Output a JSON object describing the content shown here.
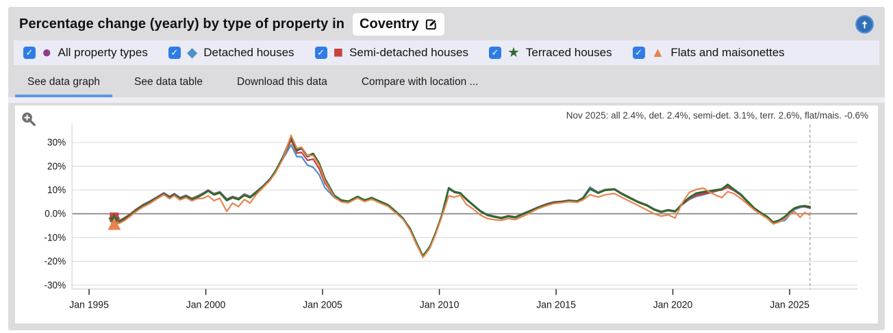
{
  "header": {
    "title": "Percentage change (yearly) by type of property in",
    "location": "Coventry"
  },
  "legend": {
    "items": [
      {
        "label": "All property types",
        "glyph": "●",
        "color": "#8e3d8e",
        "checked": true
      },
      {
        "label": "Detached houses",
        "glyph": "◆",
        "color": "#4f8fc7",
        "checked": true
      },
      {
        "label": "Semi-detached houses",
        "glyph": "■",
        "color": "#c9423f",
        "checked": true
      },
      {
        "label": "Terraced houses",
        "glyph": "★",
        "color": "#2c6b2f",
        "checked": true
      },
      {
        "label": "Flats and maisonettes",
        "glyph": "▲",
        "color": "#e8834e",
        "checked": true
      }
    ]
  },
  "tabs": [
    {
      "label": "See data graph",
      "active": true
    },
    {
      "label": "See data table",
      "active": false
    },
    {
      "label": "Download this data",
      "active": false
    },
    {
      "label": "Compare with location ...",
      "active": false
    }
  ],
  "colors": {
    "checkbox_blue": "#2f7ce6",
    "tab_underline_blue": "#5b97e0",
    "up_button_blue": "#2e6fb7",
    "widget_gray": "#dcdcde",
    "legend_bg": "#ebebf5"
  },
  "chart_data": {
    "type": "line",
    "note": "Nov 2025: all 2.4%, det. 2.4%, semi-det. 3.1%, terr. 2.6%, flat/mais. -0.6%",
    "ylabel": "Percentage change (yearly)",
    "x_range": [
      1994.27,
      2027.9
    ],
    "y_range": [
      -31.7,
      37.5
    ],
    "grid": true,
    "legend_position": "top",
    "current_month_line_x": 2025.87,
    "x_ticks": [
      {
        "v": 1995,
        "label": "Jan 1995"
      },
      {
        "v": 2000,
        "label": "Jan 2000"
      },
      {
        "v": 2005,
        "label": "Jan 2005"
      },
      {
        "v": 2010,
        "label": "Jan 2010"
      },
      {
        "v": 2015,
        "label": "Jan 2015"
      },
      {
        "v": 2020,
        "label": "Jan 2020"
      },
      {
        "v": 2025,
        "label": "Jan 2025"
      }
    ],
    "y_ticks": [
      {
        "v": 30,
        "label": "30%"
      },
      {
        "v": 20,
        "label": "20%"
      },
      {
        "v": 10,
        "label": "10%"
      },
      {
        "v": 0,
        "label": "0.0%"
      },
      {
        "v": -10,
        "label": "-10%"
      },
      {
        "v": -20,
        "label": "-20%"
      },
      {
        "v": -30,
        "label": "-30%"
      }
    ],
    "x": [
      1996.08,
      1996.3,
      1996.5,
      1996.75,
      1997.0,
      1997.3,
      1997.6,
      1997.9,
      1998.2,
      1998.45,
      1998.65,
      1998.9,
      1999.15,
      1999.4,
      1999.65,
      1999.9,
      2000.1,
      2000.35,
      2000.6,
      2000.9,
      2001.15,
      2001.4,
      2001.65,
      2001.9,
      2002.15,
      2002.45,
      2002.75,
      2003.0,
      2003.3,
      2003.65,
      2003.9,
      2004.1,
      2004.35,
      2004.6,
      2004.85,
      2005.1,
      2005.5,
      2005.8,
      2006.1,
      2006.5,
      2006.8,
      2007.1,
      2007.45,
      2007.8,
      2008.1,
      2008.45,
      2008.75,
      2009.0,
      2009.3,
      2009.6,
      2009.85,
      2010.1,
      2010.4,
      2010.65,
      2010.9,
      2011.15,
      2011.45,
      2011.75,
      2012.05,
      2012.35,
      2012.65,
      2012.95,
      2013.25,
      2013.6,
      2013.9,
      2014.2,
      2014.55,
      2014.9,
      2015.2,
      2015.55,
      2015.9,
      2016.15,
      2016.45,
      2016.8,
      2017.1,
      2017.5,
      2017.8,
      2018.1,
      2018.5,
      2018.9,
      2019.2,
      2019.5,
      2019.8,
      2020.1,
      2020.4,
      2020.7,
      2021.0,
      2021.3,
      2021.6,
      2021.9,
      2022.1,
      2022.35,
      2022.6,
      2022.9,
      2023.2,
      2023.5,
      2023.8,
      2024.05,
      2024.3,
      2024.55,
      2024.8,
      2025.0,
      2025.2,
      2025.45,
      2025.65,
      2025.87
    ],
    "series": [
      {
        "name": "All property types",
        "color": "#8e3d8e",
        "marker": "circle",
        "width": 2.4,
        "y": [
          -2.0,
          -3.2,
          -2.2,
          -0.5,
          1.5,
          3.5,
          5.0,
          6.8,
          8.5,
          7.0,
          8.2,
          6.5,
          7.5,
          6.2,
          7.2,
          8.5,
          9.8,
          8.2,
          9.0,
          5.8,
          7.0,
          6.2,
          8.0,
          7.0,
          9.0,
          11.5,
          14.5,
          18.0,
          23.5,
          32.0,
          26.5,
          27.5,
          24.0,
          25.0,
          21.0,
          14.5,
          7.5,
          5.5,
          5.0,
          7.0,
          5.5,
          6.5,
          5.0,
          3.5,
          1.0,
          -2.0,
          -6.5,
          -12.0,
          -18.0,
          -14.0,
          -8.0,
          -1.0,
          10.5,
          9.0,
          8.5,
          6.0,
          3.5,
          1.0,
          -0.5,
          -1.2,
          -1.8,
          -1.0,
          -1.5,
          0.0,
          1.2,
          2.5,
          3.8,
          4.8,
          5.0,
          5.5,
          5.2,
          6.5,
          10.5,
          8.8,
          10.0,
          10.3,
          8.5,
          7.0,
          5.0,
          3.5,
          1.8,
          0.8,
          1.5,
          1.0,
          4.0,
          6.5,
          8.2,
          8.7,
          9.2,
          9.8,
          10.0,
          11.3,
          10.0,
          8.0,
          5.0,
          2.0,
          0.0,
          -1.5,
          -3.8,
          -3.0,
          -1.5,
          0.5,
          2.0,
          2.8,
          3.0,
          2.4
        ]
      },
      {
        "name": "Detached houses",
        "color": "#4f8fc7",
        "marker": "diamond",
        "width": 2.2,
        "y": [
          -2.2,
          -3.0,
          -2.0,
          -0.3,
          1.8,
          3.8,
          5.3,
          7.0,
          8.8,
          7.3,
          8.5,
          6.8,
          7.8,
          6.5,
          7.5,
          8.8,
          10.0,
          8.5,
          9.3,
          6.2,
          7.3,
          6.5,
          8.3,
          7.3,
          9.3,
          11.8,
          14.8,
          18.3,
          23.0,
          29.0,
          24.0,
          24.0,
          20.5,
          19.5,
          16.5,
          11.0,
          6.8,
          5.2,
          4.8,
          6.8,
          5.2,
          6.8,
          5.3,
          3.8,
          1.3,
          -1.8,
          -6.8,
          -12.5,
          -18.2,
          -14.2,
          -8.2,
          -1.2,
          11.0,
          9.3,
          8.8,
          6.3,
          3.8,
          1.3,
          -0.3,
          -1.0,
          -1.6,
          -0.8,
          -1.3,
          0.2,
          1.4,
          2.7,
          4.0,
          5.0,
          5.2,
          5.7,
          5.4,
          6.8,
          11.2,
          9.0,
          10.2,
          10.5,
          8.7,
          7.2,
          5.2,
          3.7,
          2.0,
          1.0,
          1.7,
          1.2,
          3.8,
          6.0,
          7.3,
          8.0,
          8.8,
          9.6,
          10.2,
          11.0,
          9.8,
          7.8,
          4.8,
          1.8,
          -0.2,
          -1.7,
          -4.0,
          -3.2,
          -2.8,
          -0.5,
          1.8,
          2.6,
          3.4,
          2.4
        ]
      },
      {
        "name": "Semi-detached houses",
        "color": "#c9423f",
        "marker": "square",
        "width": 2.2,
        "y": [
          -1.5,
          -2.8,
          -1.8,
          -0.2,
          1.7,
          3.6,
          5.1,
          6.9,
          8.6,
          7.1,
          8.3,
          6.6,
          7.6,
          6.3,
          7.3,
          8.6,
          9.9,
          8.3,
          9.1,
          6.0,
          7.1,
          6.3,
          8.1,
          7.1,
          9.1,
          11.6,
          14.6,
          17.8,
          23.2,
          31.0,
          25.5,
          25.8,
          22.5,
          23.0,
          19.0,
          13.0,
          7.2,
          5.4,
          4.9,
          6.9,
          5.4,
          6.4,
          4.9,
          3.4,
          0.9,
          -2.1,
          -6.6,
          -12.2,
          -18.1,
          -14.1,
          -8.1,
          -1.1,
          10.6,
          9.1,
          8.6,
          6.1,
          3.6,
          1.1,
          -0.4,
          -1.1,
          -1.7,
          -0.9,
          -1.4,
          0.1,
          1.3,
          2.6,
          3.9,
          4.9,
          5.1,
          5.6,
          5.3,
          6.6,
          10.6,
          8.9,
          10.1,
          10.4,
          8.6,
          7.1,
          5.1,
          3.6,
          1.9,
          0.9,
          1.6,
          1.1,
          3.9,
          6.2,
          7.8,
          8.2,
          9.0,
          9.7,
          10.1,
          11.2,
          9.9,
          7.9,
          4.9,
          1.9,
          -0.1,
          -1.6,
          -3.9,
          -3.1,
          -1.4,
          0.6,
          2.1,
          3.0,
          3.2,
          3.1
        ]
      },
      {
        "name": "Terraced houses",
        "color": "#2c6b2f",
        "marker": "star",
        "width": 2.7,
        "y": [
          -2.5,
          -3.4,
          -2.4,
          -0.7,
          1.3,
          3.3,
          4.8,
          6.6,
          8.3,
          6.8,
          8.0,
          6.3,
          7.3,
          6.0,
          7.0,
          8.3,
          9.6,
          8.0,
          8.8,
          5.6,
          6.8,
          6.0,
          7.8,
          6.8,
          8.8,
          11.3,
          14.3,
          18.2,
          23.8,
          32.2,
          26.8,
          27.8,
          24.3,
          25.3,
          21.3,
          14.8,
          7.7,
          5.7,
          5.2,
          7.2,
          5.7,
          6.7,
          5.2,
          3.7,
          1.2,
          -2.2,
          -6.3,
          -11.8,
          -17.8,
          -13.8,
          -7.8,
          -0.8,
          10.8,
          9.2,
          8.7,
          6.2,
          3.7,
          1.2,
          -0.6,
          -1.3,
          -1.9,
          -1.1,
          -1.6,
          -0.1,
          1.1,
          2.4,
          3.7,
          4.7,
          4.9,
          5.4,
          5.1,
          6.4,
          10.4,
          8.7,
          9.9,
          10.2,
          8.4,
          6.9,
          4.9,
          3.4,
          1.7,
          0.7,
          1.4,
          0.9,
          4.2,
          6.8,
          8.6,
          9.2,
          9.6,
          10.1,
          10.4,
          12.3,
          10.3,
          8.2,
          5.2,
          2.2,
          0.2,
          -1.3,
          -3.6,
          -2.8,
          -1.2,
          0.8,
          2.3,
          3.1,
          3.3,
          2.6
        ]
      },
      {
        "name": "Flats and maisonettes",
        "color": "#e8834e",
        "marker": "triangle",
        "width": 2.1,
        "y": [
          -4.5,
          -4.0,
          -3.0,
          -1.2,
          0.8,
          2.8,
          4.3,
          6.2,
          8.0,
          6.3,
          7.6,
          5.8,
          6.8,
          5.4,
          6.4,
          6.5,
          7.5,
          5.5,
          6.5,
          1.0,
          4.5,
          3.0,
          6.0,
          4.5,
          8.0,
          11.0,
          14.0,
          17.5,
          23.0,
          33.0,
          27.5,
          28.0,
          24.5,
          24.5,
          20.5,
          14.0,
          7.0,
          5.0,
          4.6,
          6.6,
          5.1,
          6.1,
          4.6,
          3.1,
          0.6,
          -2.4,
          -7.0,
          -12.4,
          -18.4,
          -14.4,
          -8.4,
          -1.4,
          7.5,
          7.0,
          7.8,
          4.0,
          2.0,
          -0.5,
          -2.0,
          -2.5,
          -2.8,
          -2.0,
          -2.5,
          -1.0,
          0.5,
          2.0,
          3.3,
          4.3,
          4.6,
          5.1,
          4.8,
          5.8,
          8.0,
          7.0,
          8.0,
          8.5,
          7.0,
          5.5,
          3.5,
          1.5,
          0.0,
          -1.0,
          -0.5,
          -1.8,
          4.5,
          9.0,
          10.2,
          10.8,
          9.0,
          7.5,
          6.8,
          9.3,
          8.5,
          6.5,
          4.0,
          1.5,
          -0.5,
          -2.0,
          -4.3,
          -3.5,
          -2.0,
          -0.5,
          1.0,
          -1.5,
          0.5,
          -0.6
        ]
      }
    ]
  }
}
